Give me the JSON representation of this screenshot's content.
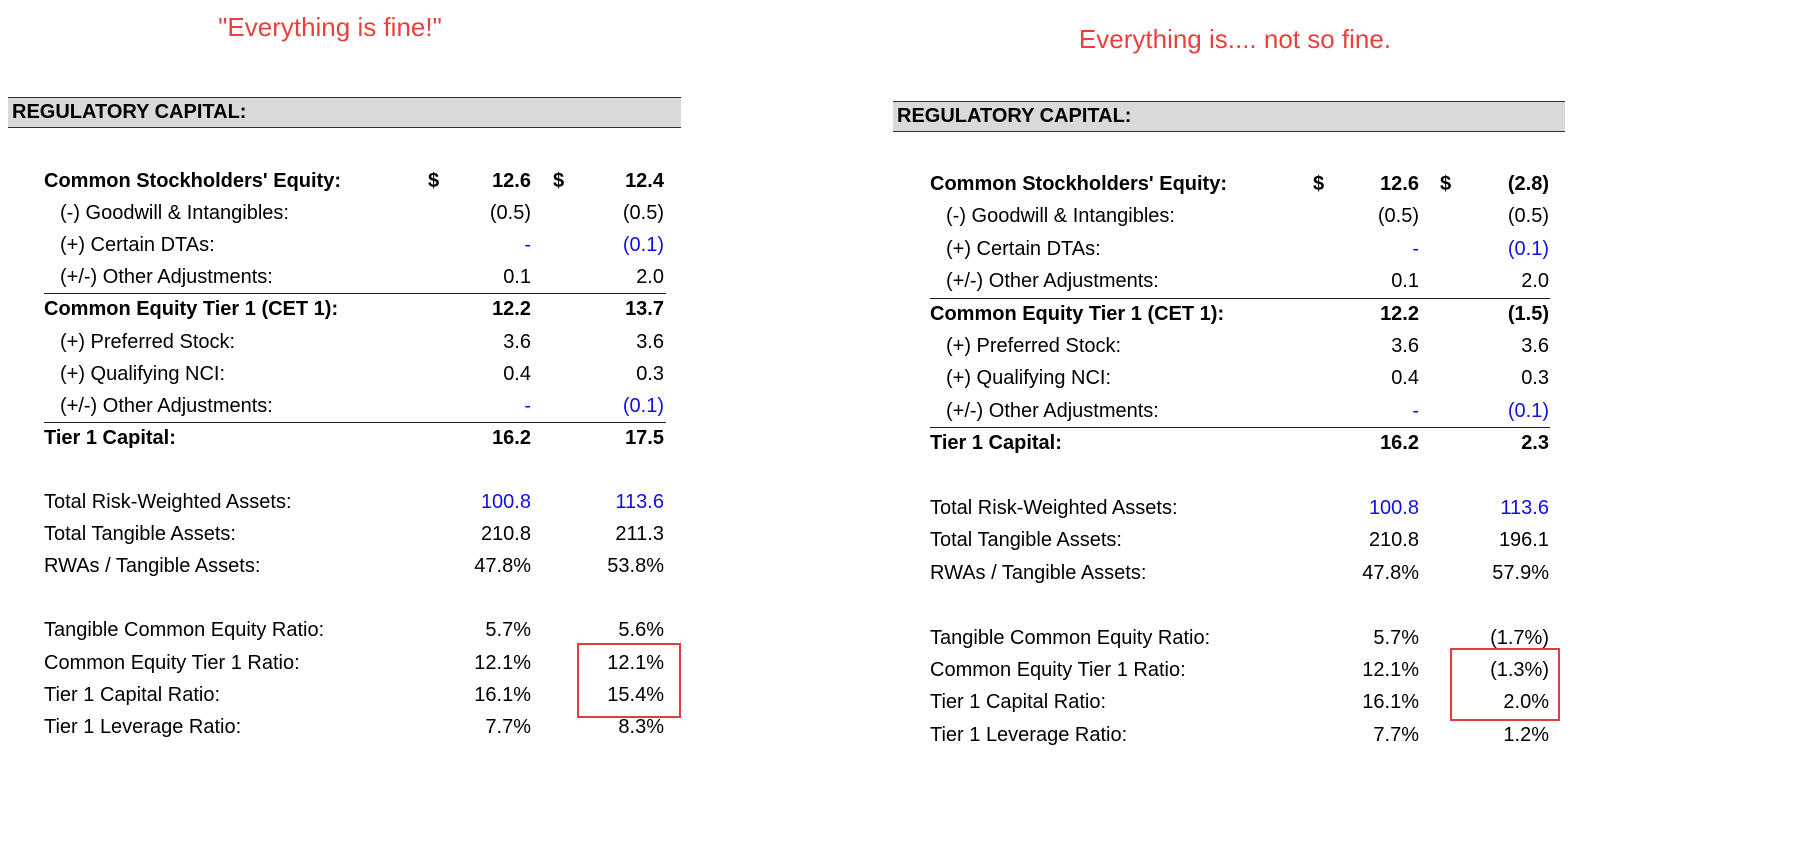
{
  "colors": {
    "title": "#e8413c",
    "highlight_box": "#e0403c",
    "input_blue": "#1010e0",
    "header_bg": "#d9d9d9"
  },
  "panels": [
    {
      "title": "\"Everything is fine!\"",
      "header": "REGULATORY CAPITAL:",
      "rows": [
        {
          "label": "Common Stockholders' Equity:",
          "bold": true,
          "currency": "$",
          "v1": "12.6",
          "v2": "12.4"
        },
        {
          "label": "(-) Goodwill & Intangibles:",
          "indent": true,
          "v1": "(0.5)",
          "v2": "(0.5)"
        },
        {
          "label": "(+) Certain DTAs:",
          "indent": true,
          "v1": "-",
          "v2": "(0.1)",
          "blue": true
        },
        {
          "label": "(+/-) Other Adjustments:",
          "indent": true,
          "v1": "0.1",
          "v2": "2.0",
          "rule_below": true
        },
        {
          "label": "Common Equity Tier 1 (CET 1):",
          "bold": true,
          "v1": "12.2",
          "v2": "13.7"
        },
        {
          "label": "(+) Preferred Stock:",
          "indent": true,
          "v1": "3.6",
          "v2": "3.6"
        },
        {
          "label": "(+) Qualifying NCI:",
          "indent": true,
          "v1": "0.4",
          "v2": "0.3"
        },
        {
          "label": "(+/-) Other Adjustments:",
          "indent": true,
          "v1": "-",
          "v2": "(0.1)",
          "blue": true,
          "rule_below": true
        },
        {
          "label": "Tier 1 Capital:",
          "bold": true,
          "v1": "16.2",
          "v2": "17.5"
        },
        null,
        {
          "label": "Total Risk-Weighted Assets:",
          "v1": "100.8",
          "v2": "113.6",
          "blue": true
        },
        {
          "label": "Total Tangible Assets:",
          "v1": "210.8",
          "v2": "211.3"
        },
        {
          "label": "RWAs / Tangible Assets:",
          "v1": "47.8%",
          "v2": "53.8%"
        },
        null,
        {
          "label": "Tangible Common Equity Ratio:",
          "v1": "5.7%",
          "v2": "5.6%"
        },
        {
          "label": "Common Equity Tier 1 Ratio:",
          "v1": "12.1%",
          "v2": "12.1%"
        },
        {
          "label": "Tier 1 Capital Ratio:",
          "v1": "16.1%",
          "v2": "15.4%"
        },
        {
          "label": "Tier 1 Leverage Ratio:",
          "v1": "7.7%",
          "v2": "8.3%"
        }
      ]
    },
    {
      "title": "Everything is.... not so fine.",
      "header": "REGULATORY CAPITAL:",
      "rows": [
        {
          "label": "Common Stockholders' Equity:",
          "bold": true,
          "currency": "$",
          "v1": "12.6",
          "v2": "(2.8)"
        },
        {
          "label": "(-) Goodwill & Intangibles:",
          "indent": true,
          "v1": "(0.5)",
          "v2": "(0.5)"
        },
        {
          "label": "(+) Certain DTAs:",
          "indent": true,
          "v1": "-",
          "v2": "(0.1)",
          "blue": true
        },
        {
          "label": "(+/-) Other Adjustments:",
          "indent": true,
          "v1": "0.1",
          "v2": "2.0",
          "rule_below": true
        },
        {
          "label": "Common Equity Tier 1 (CET 1):",
          "bold": true,
          "v1": "12.2",
          "v2": "(1.5)"
        },
        {
          "label": "(+) Preferred Stock:",
          "indent": true,
          "v1": "3.6",
          "v2": "3.6"
        },
        {
          "label": "(+) Qualifying NCI:",
          "indent": true,
          "v1": "0.4",
          "v2": "0.3"
        },
        {
          "label": "(+/-) Other Adjustments:",
          "indent": true,
          "v1": "-",
          "v2": "(0.1)",
          "blue": true,
          "rule_below": true
        },
        {
          "label": "Tier 1 Capital:",
          "bold": true,
          "v1": "16.2",
          "v2": "2.3"
        },
        null,
        {
          "label": "Total Risk-Weighted Assets:",
          "v1": "100.8",
          "v2": "113.6",
          "blue": true
        },
        {
          "label": "Total Tangible Assets:",
          "v1": "210.8",
          "v2": "196.1"
        },
        {
          "label": "RWAs / Tangible Assets:",
          "v1": "47.8%",
          "v2": "57.9%"
        },
        null,
        {
          "label": "Tangible Common Equity Ratio:",
          "v1": "5.7%",
          "v2": "(1.7%)"
        },
        {
          "label": "Common Equity Tier 1 Ratio:",
          "v1": "12.1%",
          "v2": "(1.3%)"
        },
        {
          "label": "Tier 1 Capital Ratio:",
          "v1": "16.1%",
          "v2": "2.0%"
        },
        {
          "label": "Tier 1 Leverage Ratio:",
          "v1": "7.7%",
          "v2": "1.2%"
        }
      ]
    }
  ]
}
